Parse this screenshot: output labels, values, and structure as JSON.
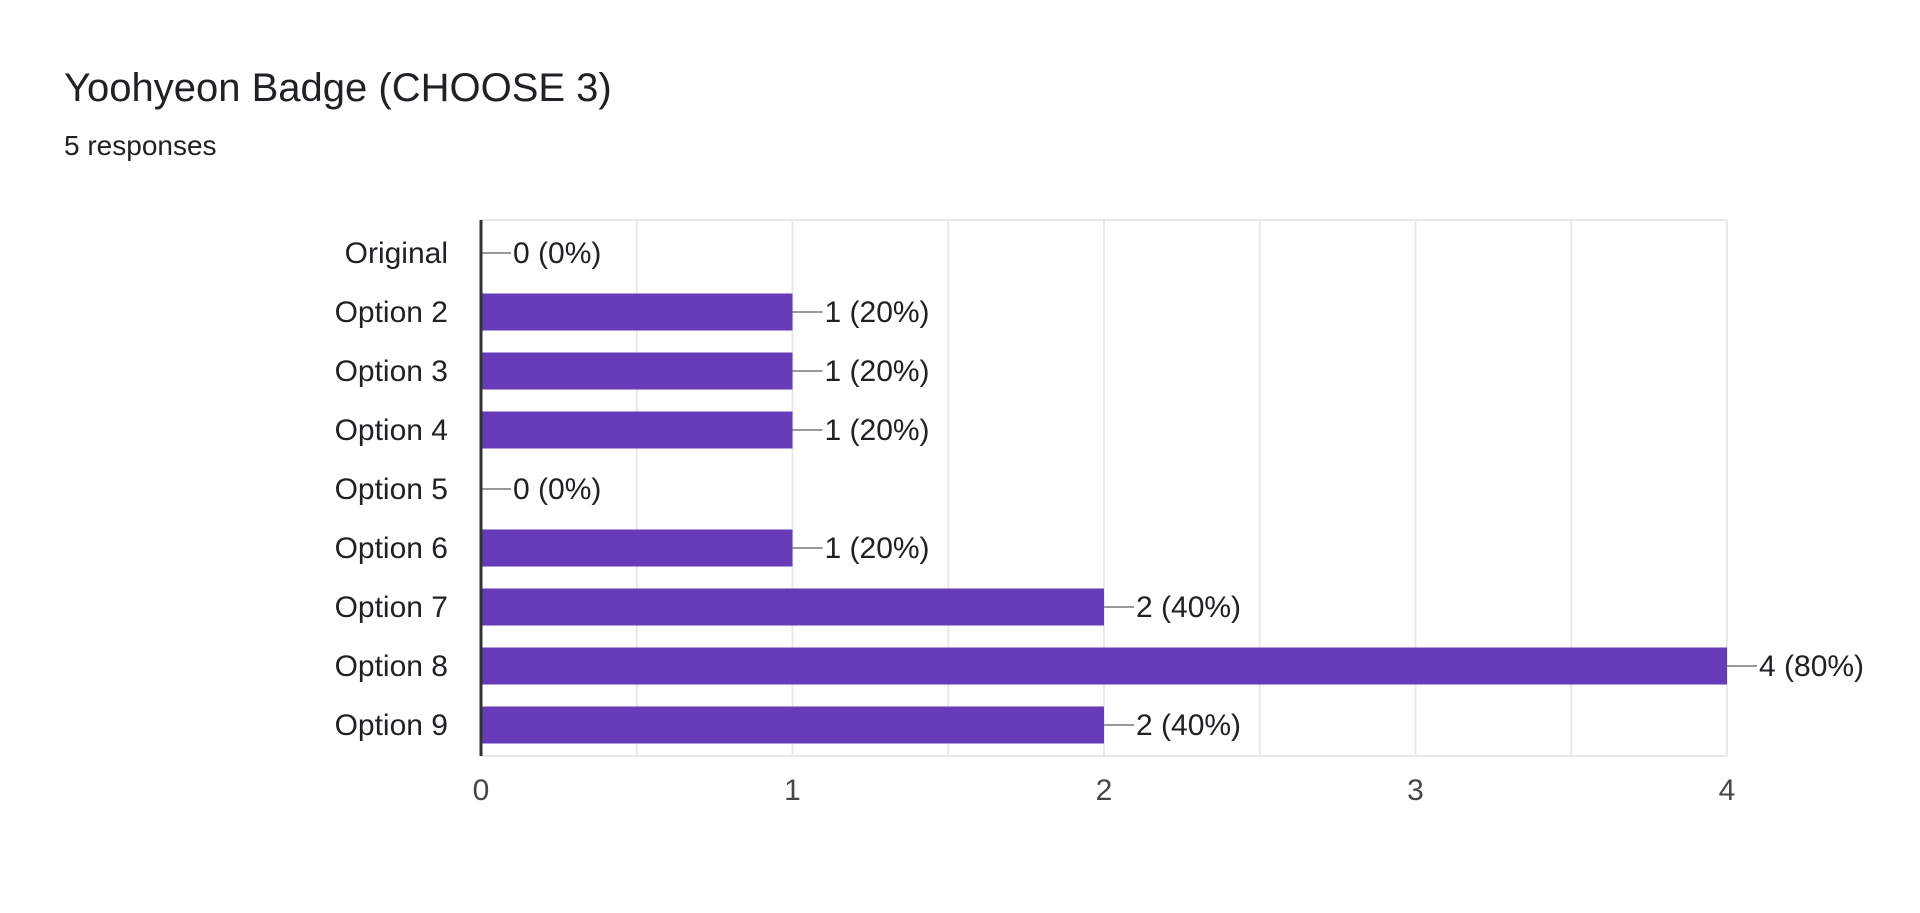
{
  "header": {
    "title": "Yoohyeon Badge (CHOOSE 3)",
    "subtitle": "5 responses"
  },
  "colors": {
    "bar": "#673ab7",
    "grid": "#e8e8e8",
    "axis": "#333333",
    "leader": "#999999"
  },
  "chart_data": {
    "type": "bar",
    "orientation": "horizontal",
    "title": "Yoohyeon Badge (CHOOSE 3)",
    "subtitle": "5 responses",
    "categories": [
      "Original",
      "Option 2",
      "Option 3",
      "Option 4",
      "Option 5",
      "Option 6",
      "Option 7",
      "Option 8",
      "Option 9"
    ],
    "values": [
      0,
      1,
      1,
      1,
      0,
      1,
      2,
      4,
      2
    ],
    "data_labels": [
      "0 (0%)",
      "1 (20%)",
      "1 (20%)",
      "1 (20%)",
      "0 (0%)",
      "1 (20%)",
      "2 (40%)",
      "4 (80%)",
      "2 (40%)"
    ],
    "xlim": [
      0,
      4
    ],
    "x_ticks": [
      "0",
      "1",
      "2",
      "3",
      "4"
    ],
    "grid": true,
    "legend": "none"
  }
}
